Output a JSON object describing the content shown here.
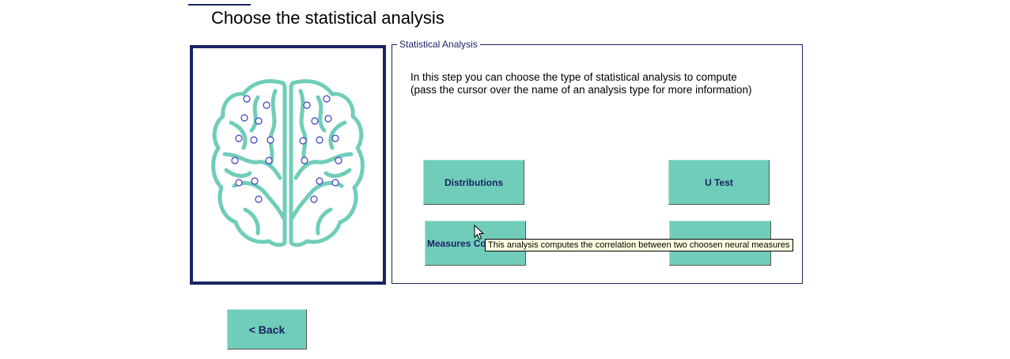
{
  "page": {
    "title": "Choose the statistical analysis"
  },
  "group": {
    "legend": "Statistical Analysis",
    "instructions_line1": "In this step you can choose the type of statistical analysis to compute",
    "instructions_line2": "(pass the cursor over the name of an analysis type for more information)"
  },
  "buttons": {
    "distributions": "Distributions",
    "u_test": "U Test",
    "measures": "Measures Co",
    "fourth": "",
    "back": "<  Back"
  },
  "tooltip": {
    "text": "This analysis computes the correlation between two choosen neural measures"
  },
  "colors": {
    "accent": "#70cdb9",
    "navy": "#1a2463",
    "tooltip_bg": "#ffffe1"
  },
  "icons": {
    "brain": "brain-icon",
    "cursor": "mouse-pointer-icon"
  }
}
